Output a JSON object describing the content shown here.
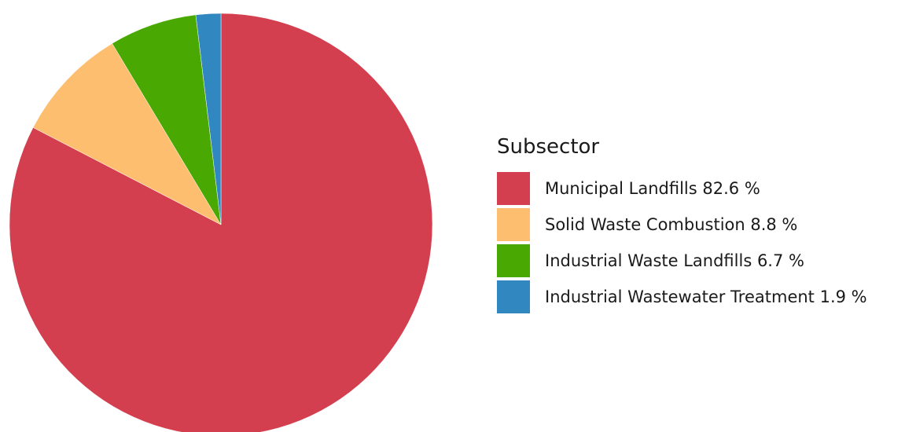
{
  "chart_data": {
    "type": "pie",
    "legend_title": "Subsector",
    "legend_position": "right",
    "slices": [
      {
        "label": "Municipal Landfills 82.6 %",
        "category": "Municipal Landfills",
        "value": 82.6,
        "color": "#d43f50"
      },
      {
        "label": "Solid Waste Combustion 8.8 %",
        "category": "Solid Waste Combustion",
        "value": 8.8,
        "color": "#fdbf6f"
      },
      {
        "label": "Industrial Waste Landfills 6.7 %",
        "category": "Industrial Waste Landfills",
        "value": 6.7,
        "color": "#49a802"
      },
      {
        "label": "Industrial Wastewater Treatment 1.9 %",
        "category": "Industrial Wastewater Treatment",
        "value": 1.9,
        "color": "#3187c0"
      }
    ],
    "start_angle": "12 o'clock",
    "direction": "clockwise"
  }
}
